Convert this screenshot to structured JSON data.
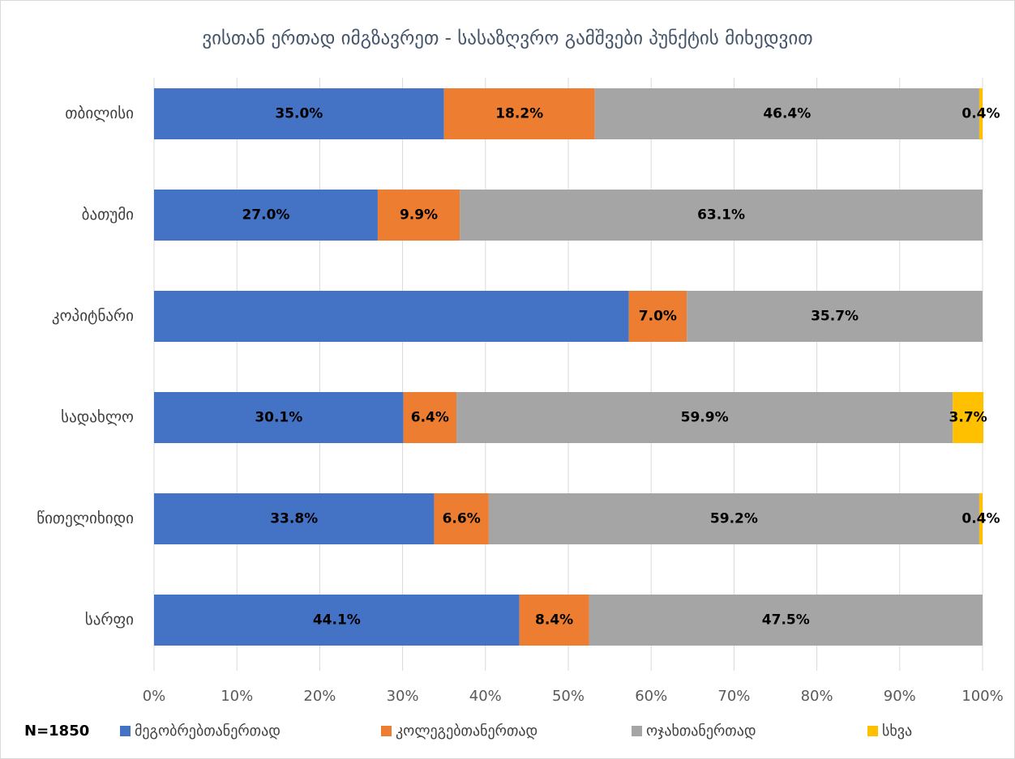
{
  "chart_data": {
    "type": "stacked_barh",
    "title": "ვისთან ერთად იმგზავრეთ -  სასაზღვრო გამშვები პუნქტის მიხედვით",
    "categories": [
      "თბილისი",
      "ბათუმი",
      "კოპიტნარი",
      "სადახლო",
      "წითელიხიდი",
      "სარფი"
    ],
    "series": [
      {
        "name": "მეგობრებთანერთად",
        "color": "#4472c4",
        "values": [
          35.0,
          27.0,
          57.3,
          30.1,
          33.8,
          44.1
        ],
        "value_labels": [
          "35.0%",
          "27.0%",
          null,
          "30.1%",
          "33.8%",
          "44.1%"
        ]
      },
      {
        "name": "კოლეგებთანერთად",
        "color": "#ed7d31",
        "values": [
          18.2,
          9.9,
          7.0,
          6.4,
          6.6,
          8.4
        ],
        "value_labels": [
          "18.2%",
          "9.9%",
          "7.0%",
          "6.4%",
          "6.6%",
          "8.4%"
        ]
      },
      {
        "name": "ოჯახთანერთად",
        "color": "#a5a5a5",
        "values": [
          46.4,
          63.1,
          35.7,
          59.9,
          59.2,
          47.5
        ],
        "value_labels": [
          "46.4%",
          "63.1%",
          "35.7%",
          "59.9%",
          "59.2%",
          "47.5%"
        ]
      },
      {
        "name": "სხვა",
        "color": "#ffc000",
        "values": [
          0.4,
          null,
          null,
          3.7,
          0.4,
          null
        ],
        "value_labels": [
          "0.4%",
          null,
          null,
          "3.7%",
          "0.4%",
          null
        ]
      }
    ],
    "xlim": [
      0,
      100
    ],
    "xticks": [
      {
        "value": 0,
        "label": "0%"
      },
      {
        "value": 10,
        "label": "10%"
      },
      {
        "value": 20,
        "label": "20%"
      },
      {
        "value": 30,
        "label": "30%"
      },
      {
        "value": 40,
        "label": "40%"
      },
      {
        "value": 50,
        "label": "50%"
      },
      {
        "value": 60,
        "label": "60%"
      },
      {
        "value": 70,
        "label": "70%"
      },
      {
        "value": 80,
        "label": "80%"
      },
      {
        "value": 90,
        "label": "90%"
      },
      {
        "value": 100,
        "label": "100%"
      }
    ],
    "grid": true,
    "annotation": "N=1850"
  }
}
